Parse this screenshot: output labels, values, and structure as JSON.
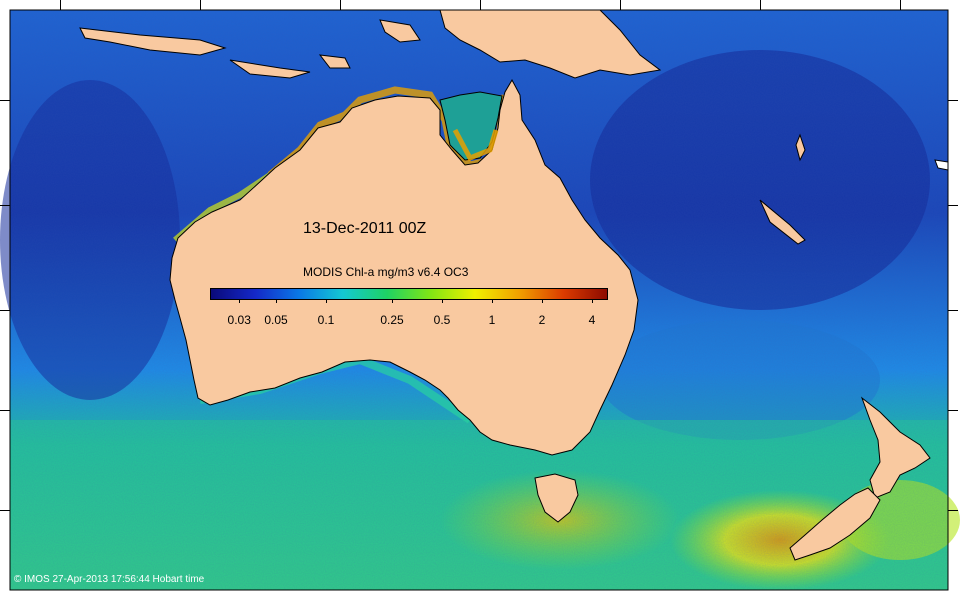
{
  "map": {
    "date_label": "13-Dec-2011 00Z",
    "colorbar": {
      "title": "MODIS Chl-a mg/m3 v6.4 OC3",
      "ticks": [
        {
          "label": "0.03",
          "value": 0.03
        },
        {
          "label": "0.05",
          "value": 0.05
        },
        {
          "label": "0.1",
          "value": 0.1
        },
        {
          "label": "0.25",
          "value": 0.25
        },
        {
          "label": "0.5",
          "value": 0.5
        },
        {
          "label": "1",
          "value": 1
        },
        {
          "label": "2",
          "value": 2
        },
        {
          "label": "4",
          "value": 4
        }
      ],
      "range": [
        0.02,
        5
      ],
      "scale": "log",
      "colors": [
        "#0a0a7a",
        "#1428c8",
        "#0a78e6",
        "#14c8d2",
        "#1ed264",
        "#82e614",
        "#f0f000",
        "#f0a000",
        "#dc3c00",
        "#8c0a00"
      ]
    },
    "land_color": "#f9c9a0",
    "ocean_colors": {
      "oligotrophic": "#1a3ab4",
      "mid": "#1e8ce6",
      "southern": "#1ec88c",
      "bloom": "#c8e614"
    },
    "footer": "© IMOS 27-Apr-2013 17:56:44 Hobart time"
  }
}
